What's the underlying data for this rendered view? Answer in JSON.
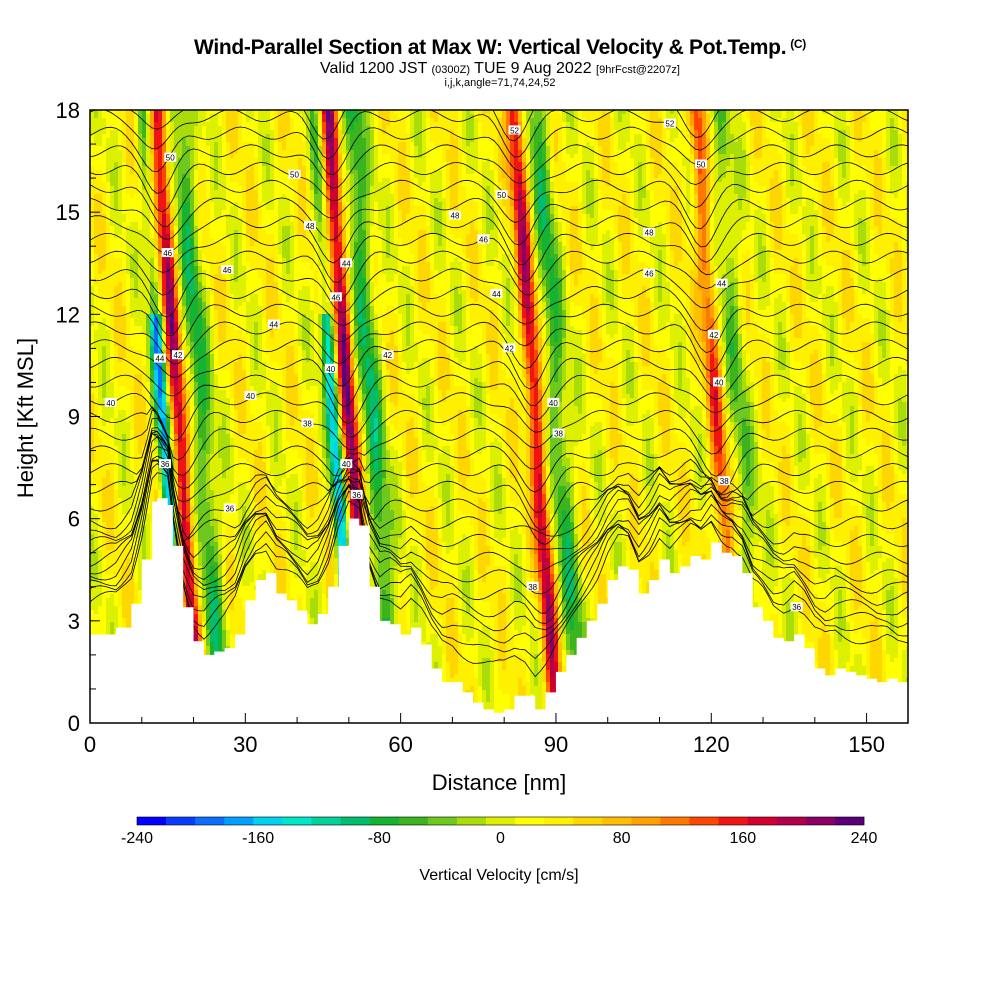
{
  "header": {
    "title_main": "Wind-Parallel Section at Max W: Vertical Velocity & Pot.Temp.",
    "title_unit": "(C)",
    "valid_prefix": "Valid 1200 JST",
    "valid_utc": "(0300Z)",
    "valid_date": "TUE 9 Aug 2022",
    "valid_fcst": "[9hrFcst@2207z]",
    "indices": "i,j,k,angle=71,74,24,52"
  },
  "chart_data": {
    "type": "heatmap",
    "xlabel": "Distance [nm]",
    "ylabel": "Height [Kft MSL]",
    "xlim": [
      0,
      158
    ],
    "ylim": [
      0,
      18
    ],
    "x_ticks": [
      0,
      30,
      60,
      90,
      120,
      150
    ],
    "y_ticks": [
      0,
      3,
      6,
      9,
      12,
      15,
      18
    ],
    "grid": false,
    "colorbar": {
      "label": "Vertical Velocity [cm/s]",
      "placement": "bottom",
      "range": [
        -240,
        240
      ],
      "ticks": [
        -240,
        -160,
        -80,
        0,
        80,
        160,
        240
      ],
      "colors": [
        "#0000ff",
        "#0a3cff",
        "#0a6eff",
        "#00a0ff",
        "#00d2f0",
        "#00e6c8",
        "#00d29a",
        "#00be6e",
        "#14b432",
        "#3cb41e",
        "#6ec81e",
        "#aadc0a",
        "#dcf000",
        "#ffff00",
        "#fff000",
        "#ffd700",
        "#ffbe00",
        "#ffa000",
        "#ff7800",
        "#ff4600",
        "#f01414",
        "#d2002d",
        "#b4004b",
        "#8c0064",
        "#5a0078"
      ]
    },
    "terrain_kft": [
      [
        0,
        2.6
      ],
      [
        5,
        2.8
      ],
      [
        8,
        3.5
      ],
      [
        10,
        4.8
      ],
      [
        12,
        6.5
      ],
      [
        13,
        6.6
      ],
      [
        15,
        6.4
      ],
      [
        16,
        5.2
      ],
      [
        18,
        3.4
      ],
      [
        20,
        2.4
      ],
      [
        22,
        2.0
      ],
      [
        24,
        2.1
      ],
      [
        26,
        2.2
      ],
      [
        28,
        2.6
      ],
      [
        30,
        3.6
      ],
      [
        32,
        4.2
      ],
      [
        34,
        4.4
      ],
      [
        36,
        3.8
      ],
      [
        38,
        3.6
      ],
      [
        40,
        3.3
      ],
      [
        42,
        2.9
      ],
      [
        44,
        3.2
      ],
      [
        46,
        4.0
      ],
      [
        48,
        5.2
      ],
      [
        50,
        6.0
      ],
      [
        52,
        5.8
      ],
      [
        54,
        4.0
      ],
      [
        56,
        3.0
      ],
      [
        58,
        2.9
      ],
      [
        60,
        2.6
      ],
      [
        62,
        2.8
      ],
      [
        64,
        2.3
      ],
      [
        66,
        1.6
      ],
      [
        68,
        1.2
      ],
      [
        70,
        1.2
      ],
      [
        72,
        0.9
      ],
      [
        74,
        0.6
      ],
      [
        76,
        0.4
      ],
      [
        78,
        0.3
      ],
      [
        80,
        0.4
      ],
      [
        82,
        0.8
      ],
      [
        84,
        0.8
      ],
      [
        86,
        0.4
      ],
      [
        88,
        0.9
      ],
      [
        90,
        1.5
      ],
      [
        92,
        2.0
      ],
      [
        94,
        2.5
      ],
      [
        96,
        3.0
      ],
      [
        98,
        3.5
      ],
      [
        100,
        4.2
      ],
      [
        102,
        4.6
      ],
      [
        104,
        4.5
      ],
      [
        106,
        3.8
      ],
      [
        108,
        4.2
      ],
      [
        110,
        4.8
      ],
      [
        112,
        4.4
      ],
      [
        114,
        4.6
      ],
      [
        116,
        4.9
      ],
      [
        118,
        4.8
      ],
      [
        120,
        5.3
      ],
      [
        122,
        5.0
      ],
      [
        124,
        4.9
      ],
      [
        126,
        4.4
      ],
      [
        128,
        3.4
      ],
      [
        130,
        3.0
      ],
      [
        132,
        2.5
      ],
      [
        134,
        2.4
      ],
      [
        136,
        2.6
      ],
      [
        138,
        2.2
      ],
      [
        140,
        1.6
      ],
      [
        142,
        1.4
      ],
      [
        144,
        1.6
      ],
      [
        146,
        1.5
      ],
      [
        148,
        1.4
      ],
      [
        150,
        1.3
      ],
      [
        152,
        1.2
      ],
      [
        154,
        1.3
      ],
      [
        156,
        1.2
      ],
      [
        158,
        1.3
      ]
    ],
    "updraft_cores": [
      {
        "x_nm": 17,
        "w_cm_s": 170
      },
      {
        "x_nm": 50,
        "w_cm_s": 190
      },
      {
        "x_nm": 86,
        "w_cm_s": 160
      },
      {
        "x_nm": 121,
        "w_cm_s": 110
      }
    ],
    "downdraft_cores": [
      {
        "x_nm": 14,
        "w_cm_s": -200
      },
      {
        "x_nm": 47,
        "w_cm_s": -180
      }
    ],
    "isentropes_c": [
      34,
      36,
      38,
      40,
      42,
      44,
      46,
      48,
      50,
      52
    ],
    "contour_labels": [
      {
        "text": "50",
        "x": 15.5,
        "y": 16.6
      },
      {
        "text": "46",
        "x": 15.0,
        "y": 13.8
      },
      {
        "text": "44",
        "x": 13.5,
        "y": 10.7
      },
      {
        "text": "42",
        "x": 17.0,
        "y": 10.8
      },
      {
        "text": "40",
        "x": 4.0,
        "y": 9.4
      },
      {
        "text": "36",
        "x": 14.5,
        "y": 7.6
      },
      {
        "text": "36",
        "x": 27.0,
        "y": 6.3
      },
      {
        "text": "50",
        "x": 39.5,
        "y": 16.1
      },
      {
        "text": "48",
        "x": 42.5,
        "y": 14.6
      },
      {
        "text": "46",
        "x": 26.5,
        "y": 13.3
      },
      {
        "text": "44",
        "x": 35.5,
        "y": 11.7
      },
      {
        "text": "40",
        "x": 31.0,
        "y": 9.6
      },
      {
        "text": "38",
        "x": 42.0,
        "y": 8.8
      },
      {
        "text": "44",
        "x": 49.5,
        "y": 13.5
      },
      {
        "text": "46",
        "x": 47.5,
        "y": 12.5
      },
      {
        "text": "40",
        "x": 46.5,
        "y": 10.4
      },
      {
        "text": "40",
        "x": 49.5,
        "y": 7.6
      },
      {
        "text": "36",
        "x": 51.5,
        "y": 6.7
      },
      {
        "text": "42",
        "x": 57.5,
        "y": 10.8
      },
      {
        "text": "52",
        "x": 82.0,
        "y": 17.4
      },
      {
        "text": "50",
        "x": 79.5,
        "y": 15.5
      },
      {
        "text": "48",
        "x": 70.5,
        "y": 14.9
      },
      {
        "text": "46",
        "x": 76.0,
        "y": 14.2
      },
      {
        "text": "44",
        "x": 78.5,
        "y": 12.6
      },
      {
        "text": "42",
        "x": 81.0,
        "y": 11.0
      },
      {
        "text": "40",
        "x": 89.5,
        "y": 9.4
      },
      {
        "text": "38",
        "x": 90.5,
        "y": 8.5
      },
      {
        "text": "38",
        "x": 85.5,
        "y": 4.0
      },
      {
        "text": "52",
        "x": 112.0,
        "y": 17.6
      },
      {
        "text": "50",
        "x": 118.0,
        "y": 16.4
      },
      {
        "text": "48",
        "x": 108.0,
        "y": 14.4
      },
      {
        "text": "46",
        "x": 108.0,
        "y": 13.2
      },
      {
        "text": "44",
        "x": 122.0,
        "y": 12.9
      },
      {
        "text": "42",
        "x": 120.5,
        "y": 11.4
      },
      {
        "text": "40",
        "x": 121.5,
        "y": 10.0
      },
      {
        "text": "38",
        "x": 122.5,
        "y": 7.1
      },
      {
        "text": "36",
        "x": 136.5,
        "y": 3.4
      }
    ]
  }
}
